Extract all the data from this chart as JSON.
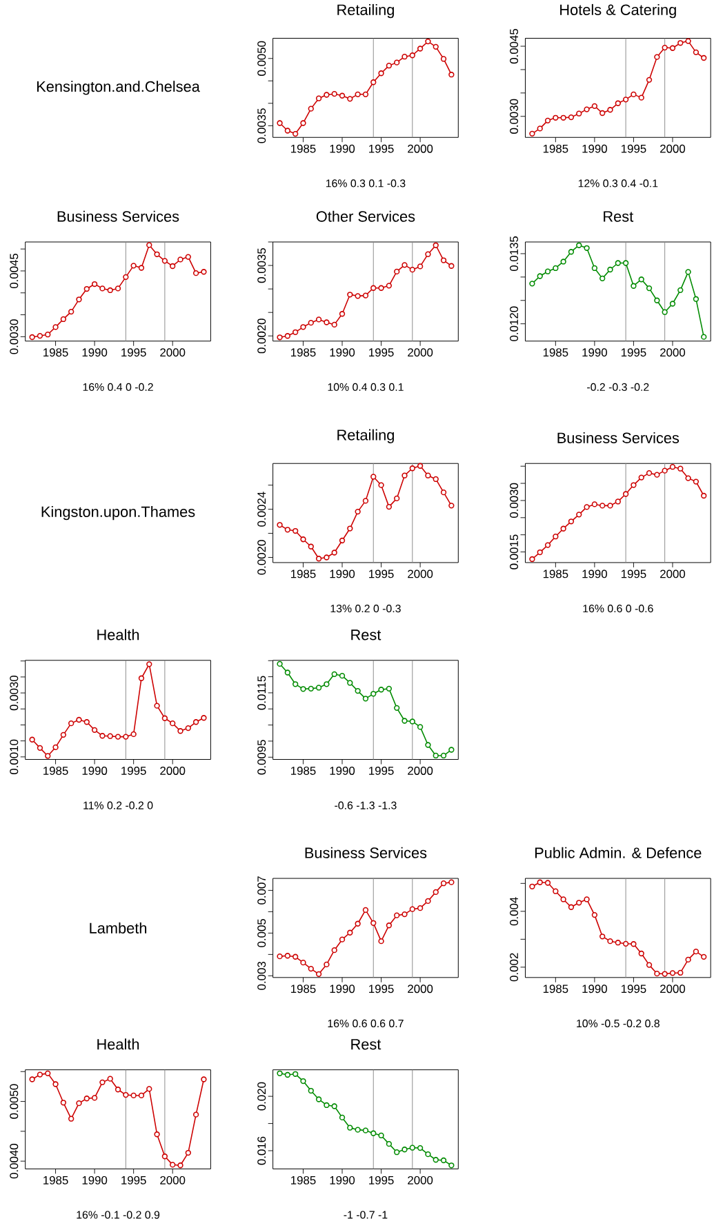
{
  "chart_data": [
    {
      "type": "other",
      "title": "Kensington.and.Chelsea"
    },
    {
      "type": "line",
      "title": "Retailing",
      "xlabel": "16% 0.3 0.1 -0.3",
      "color": "#cd0000",
      "marker": "circle",
      "line_style": "solid",
      "xlim": [
        1981.12,
        2004.88
      ],
      "xticks": [
        1985,
        1990,
        1995,
        2000
      ],
      "ylim": [
        0.00324,
        0.00545
      ],
      "yticks": [
        0.0035,
        {
          "value": 0.004,
          "label": null
        },
        {
          "value": 0.0045,
          "label": null
        },
        {
          "value": 0.005,
          "label": "0.0050"
        }
      ],
      "ref_lines": [
        {
          "axis": "x",
          "value": 1994,
          "color": "#8c8c8c"
        },
        {
          "axis": "x",
          "value": 1999,
          "color": "#8c8c8c"
        }
      ],
      "x": [
        1982,
        1983,
        1984,
        1985,
        1986,
        1987,
        1988,
        1989,
        1990,
        1991,
        1992,
        1993,
        1994,
        1995,
        1996,
        1997,
        1998,
        1999,
        2000,
        2001,
        2002,
        2003,
        2004
      ],
      "values": [
        0.00356,
        0.00339,
        0.00332,
        0.00356,
        0.00388,
        0.00411,
        0.00419,
        0.00421,
        0.00417,
        0.0041,
        0.0042,
        0.0042,
        0.00447,
        0.00467,
        0.00484,
        0.00491,
        0.00504,
        0.00507,
        0.00522,
        0.00538,
        0.00526,
        0.00499,
        0.00464
      ]
    },
    {
      "type": "line",
      "title": "Hotels & Catering",
      "xlabel": "12% 0.3 0.4 -0.1",
      "color": "#cd0000",
      "marker": "circle",
      "line_style": "solid",
      "xlim": [
        1981.12,
        2004.88
      ],
      "xticks": [
        1985,
        1990,
        1995,
        2000
      ],
      "ylim": [
        0.00255,
        0.00467
      ],
      "yticks": [
        {
          "value": 0.003,
          "label": "0.0030"
        },
        {
          "value": 0.0035,
          "label": null
        },
        {
          "value": 0.004,
          "label": null
        },
        0.0045
      ],
      "ref_lines": [
        {
          "axis": "x",
          "value": 1994,
          "color": "#8c8c8c"
        },
        {
          "axis": "x",
          "value": 1999,
          "color": "#8c8c8c"
        }
      ],
      "x": [
        1982,
        1983,
        1984,
        1985,
        1986,
        1987,
        1988,
        1989,
        1990,
        1991,
        1992,
        1993,
        1994,
        1995,
        1996,
        1997,
        1998,
        1999,
        2000,
        2001,
        2002,
        2003,
        2004
      ],
      "values": [
        0.00263,
        0.00274,
        0.00291,
        0.00297,
        0.00297,
        0.00298,
        0.00306,
        0.00315,
        0.00322,
        0.00307,
        0.00314,
        0.00328,
        0.00336,
        0.00347,
        0.0034,
        0.00378,
        0.00427,
        0.00447,
        0.00446,
        0.00457,
        0.00461,
        0.00437,
        0.00425
      ]
    },
    {
      "type": "line",
      "title": "Business Services",
      "xlabel": "16% 0.4 0 -0.2",
      "color": "#cd0000",
      "marker": "circle",
      "line_style": "solid",
      "xlim": [
        1981.12,
        2004.88
      ],
      "xticks": [
        1985,
        1990,
        1995,
        2000
      ],
      "ylim": [
        0.0029,
        0.00516
      ],
      "yticks": [
        {
          "value": 0.003,
          "label": "0.0030"
        },
        {
          "value": 0.0035,
          "label": null
        },
        {
          "value": 0.004,
          "label": null
        },
        0.0045,
        {
          "value": 0.005,
          "label": null
        }
      ],
      "ref_lines": [
        {
          "axis": "x",
          "value": 1994,
          "color": "#8c8c8c"
        },
        {
          "axis": "x",
          "value": 1999,
          "color": "#8c8c8c"
        }
      ],
      "x": [
        1982,
        1983,
        1984,
        1985,
        1986,
        1987,
        1988,
        1989,
        1990,
        1991,
        1992,
        1993,
        1994,
        1995,
        1996,
        1997,
        1998,
        1999,
        2000,
        2001,
        2002,
        2003,
        2004
      ],
      "values": [
        0.00299,
        0.00302,
        0.00305,
        0.00322,
        0.0034,
        0.00357,
        0.00385,
        0.00409,
        0.0042,
        0.0041,
        0.00406,
        0.0041,
        0.00436,
        0.00462,
        0.00457,
        0.00509,
        0.00488,
        0.00473,
        0.00461,
        0.00476,
        0.00482,
        0.00445,
        0.00448
      ]
    },
    {
      "type": "line",
      "title": "Other Services",
      "xlabel": "10% 0.4 0.3 0.1",
      "color": "#cd0000",
      "marker": "circle",
      "line_style": "solid",
      "xlim": [
        1981.12,
        2004.88
      ],
      "xticks": [
        1985,
        1990,
        1995,
        2000
      ],
      "ylim": [
        0.00189,
        0.004
      ],
      "yticks": [
        {
          "value": 0.002,
          "label": "0.0020"
        },
        {
          "value": 0.0025,
          "label": null
        },
        {
          "value": 0.003,
          "label": null
        },
        0.0035,
        {
          "value": 0.004,
          "label": null
        }
      ],
      "ref_lines": [
        {
          "axis": "x",
          "value": 1994,
          "color": "#8c8c8c"
        },
        {
          "axis": "x",
          "value": 1999,
          "color": "#8c8c8c"
        }
      ],
      "x": [
        1982,
        1983,
        1984,
        1985,
        1986,
        1987,
        1988,
        1989,
        1990,
        1991,
        1992,
        1993,
        1994,
        1995,
        1996,
        1997,
        1998,
        1999,
        2000,
        2001,
        2002,
        2003,
        2004
      ],
      "values": [
        0.00197,
        0.002,
        0.00208,
        0.00219,
        0.00228,
        0.00235,
        0.00229,
        0.00224,
        0.00247,
        0.00288,
        0.00285,
        0.00286,
        0.00302,
        0.00302,
        0.00307,
        0.00337,
        0.00351,
        0.00341,
        0.00348,
        0.00374,
        0.00393,
        0.00361,
        0.00349
      ]
    },
    {
      "type": "line",
      "title": "Rest",
      "xlabel": "-0.2 -0.3 -0.2",
      "color": "#008b00",
      "marker": "circle",
      "line_style": "solid",
      "xlim": [
        1981.12,
        2004.88
      ],
      "xticks": [
        1985,
        1990,
        1995,
        2000
      ],
      "ylim": [
        0.01163,
        0.01375
      ],
      "yticks": [
        {
          "value": 0.012,
          "label": "0.0120"
        },
        {
          "value": 0.0125,
          "label": null
        },
        {
          "value": 0.013,
          "label": null
        },
        0.0135
      ],
      "ref_lines": [
        {
          "axis": "x",
          "value": 1994,
          "color": "#8c8c8c"
        },
        {
          "axis": "x",
          "value": 1999,
          "color": "#8c8c8c"
        }
      ],
      "x": [
        1982,
        1983,
        1984,
        1985,
        1986,
        1987,
        1988,
        1989,
        1990,
        1991,
        1992,
        1993,
        1994,
        1995,
        1996,
        1997,
        1998,
        1999,
        2000,
        2001,
        2002,
        2003,
        2004
      ],
      "values": [
        0.01286,
        0.01302,
        0.01312,
        0.01319,
        0.01333,
        0.01354,
        0.01368,
        0.01362,
        0.01319,
        0.01297,
        0.01316,
        0.0133,
        0.0133,
        0.01281,
        0.01295,
        0.01276,
        0.0125,
        0.01225,
        0.01243,
        0.01272,
        0.01311,
        0.01253,
        0.01172
      ]
    },
    {
      "type": "other",
      "title": "Kingston.upon.Thames"
    },
    {
      "type": "line",
      "title": "Retailing",
      "xlabel": "13% 0.2 0 -0.3",
      "color": "#cd0000",
      "marker": "circle",
      "line_style": "solid",
      "xlim": [
        1981.12,
        2004.88
      ],
      "xticks": [
        1985,
        1990,
        1995,
        2000
      ],
      "ylim": [
        0.001957,
        0.00278
      ],
      "yticks": [
        {
          "value": 0.002,
          "label": "0.0020"
        },
        {
          "value": 0.0022,
          "label": null
        },
        0.0024,
        {
          "value": 0.0026,
          "label": null
        }
      ],
      "ref_lines": [
        {
          "axis": "x",
          "value": 1994,
          "color": "#8c8c8c"
        },
        {
          "axis": "x",
          "value": 1999,
          "color": "#8c8c8c"
        }
      ],
      "x": [
        1982,
        1983,
        1984,
        1985,
        1986,
        1987,
        1988,
        1989,
        1990,
        1991,
        1992,
        1993,
        1994,
        1995,
        1996,
        1997,
        1998,
        1999,
        2000,
        2001,
        2002,
        2003,
        2004
      ],
      "values": [
        0.00227,
        0.00223,
        0.00222,
        0.00215,
        0.00209,
        0.00199,
        0.002,
        0.00204,
        0.00214,
        0.00224,
        0.00238,
        0.00247,
        0.00267,
        0.0026,
        0.00242,
        0.00249,
        0.00268,
        0.00274,
        0.00276,
        0.00268,
        0.00265,
        0.00254,
        0.00243
      ]
    },
    {
      "type": "line",
      "title": "Business Services",
      "xlabel": "16% 0.6 0 -0.6",
      "color": "#cd0000",
      "marker": "circle",
      "line_style": "solid",
      "xlim": [
        1981.12,
        2004.88
      ],
      "xticks": [
        1985,
        1990,
        1995,
        2000
      ],
      "ylim": [
        0.00119,
        0.00408
      ],
      "yticks": [
        0.0015,
        {
          "value": 0.002,
          "label": null
        },
        {
          "value": 0.0025,
          "label": null
        },
        {
          "value": 0.003,
          "label": "0.0030"
        },
        {
          "value": 0.0035,
          "label": null
        },
        {
          "value": 0.004,
          "label": null
        }
      ],
      "ref_lines": [
        {
          "axis": "x",
          "value": 1994,
          "color": "#8c8c8c"
        },
        {
          "axis": "x",
          "value": 1999,
          "color": "#8c8c8c"
        }
      ],
      "x": [
        1982,
        1983,
        1984,
        1985,
        1986,
        1987,
        1988,
        1989,
        1990,
        1991,
        1992,
        1993,
        1994,
        1995,
        1996,
        1997,
        1998,
        1999,
        2000,
        2001,
        2002,
        2003,
        2004
      ],
      "values": [
        0.00129,
        0.00149,
        0.0017,
        0.00195,
        0.00218,
        0.00239,
        0.00259,
        0.00281,
        0.00289,
        0.00285,
        0.00285,
        0.00297,
        0.00319,
        0.00345,
        0.00367,
        0.0038,
        0.00375,
        0.00387,
        0.00398,
        0.00393,
        0.00365,
        0.00355,
        0.00314
      ]
    },
    {
      "type": "line",
      "title": "Health",
      "xlabel": "11% 0.2 -0.2 0",
      "color": "#cd0000",
      "marker": "circle",
      "line_style": "solid",
      "xlim": [
        1981.12,
        2004.88
      ],
      "xticks": [
        1985,
        1990,
        1995,
        2000
      ],
      "ylim": [
        0.00092,
        0.00402
      ],
      "yticks": [
        {
          "value": 0.001,
          "label": "0.0010"
        },
        {
          "value": 0.0015,
          "label": null
        },
        {
          "value": 0.002,
          "label": null
        },
        {
          "value": 0.0025,
          "label": null
        },
        {
          "value": 0.003,
          "label": "0.0030"
        },
        {
          "value": 0.0035,
          "label": null
        },
        {
          "value": 0.004,
          "label": null
        }
      ],
      "ref_lines": [
        {
          "axis": "x",
          "value": 1994,
          "color": "#8c8c8c"
        },
        {
          "axis": "x",
          "value": 1999,
          "color": "#8c8c8c"
        }
      ],
      "x": [
        1982,
        1983,
        1984,
        1985,
        1986,
        1987,
        1988,
        1989,
        1990,
        1991,
        1992,
        1993,
        1994,
        1995,
        1996,
        1997,
        1998,
        1999,
        2000,
        2001,
        2002,
        2003,
        2004
      ],
      "values": [
        0.00154,
        0.00128,
        0.00103,
        0.0013,
        0.00169,
        0.00205,
        0.00216,
        0.00209,
        0.00184,
        0.00166,
        0.00165,
        0.00163,
        0.00163,
        0.00171,
        0.00346,
        0.0039,
        0.0026,
        0.00221,
        0.00205,
        0.00181,
        0.0019,
        0.00209,
        0.00222
      ]
    },
    {
      "type": "line",
      "title": "Rest",
      "xlabel": "-0.6 -1.3 -1.3",
      "color": "#008b00",
      "marker": "circle",
      "line_style": "solid",
      "xlim": [
        1981.12,
        2004.88
      ],
      "xticks": [
        1985,
        1990,
        1995,
        2000
      ],
      "ylim": [
        0.00943,
        0.01251
      ],
      "yticks": [
        0.0095,
        {
          "value": 0.01,
          "label": null
        },
        {
          "value": 0.0105,
          "label": null
        },
        {
          "value": 0.011,
          "label": null
        },
        0.0115,
        {
          "value": 0.012,
          "label": null
        },
        {
          "value": 0.0125,
          "label": null
        }
      ],
      "ref_lines": [
        {
          "axis": "x",
          "value": 1994,
          "color": "#8c8c8c"
        },
        {
          "axis": "x",
          "value": 1999,
          "color": "#8c8c8c"
        }
      ],
      "x": [
        1982,
        1983,
        1984,
        1985,
        1986,
        1987,
        1988,
        1989,
        1990,
        1991,
        1992,
        1993,
        1994,
        1995,
        1996,
        1997,
        1998,
        1999,
        2000,
        2001,
        2002,
        2003,
        2004
      ],
      "values": [
        0.0124,
        0.01213,
        0.01177,
        0.01162,
        0.01163,
        0.01166,
        0.01177,
        0.01208,
        0.01203,
        0.01181,
        0.01156,
        0.01132,
        0.01147,
        0.0116,
        0.01163,
        0.01103,
        0.01063,
        0.01061,
        0.01044,
        0.00988,
        0.00955,
        0.00955,
        0.00973
      ]
    },
    {
      "type": "other",
      "title": "Lambeth"
    },
    {
      "type": "line",
      "title": "Business Services",
      "xlabel": "16% 0.6 0.6 0.7",
      "color": "#cd0000",
      "marker": "circle",
      "line_style": "solid",
      "xlim": [
        1981.12,
        2004.88
      ],
      "xticks": [
        1985,
        1990,
        1995,
        2000
      ],
      "ylim": [
        0.00292,
        0.00756
      ],
      "yticks": [
        0.003,
        {
          "value": 0.004,
          "label": null
        },
        0.005,
        {
          "value": 0.006,
          "label": null
        },
        0.007
      ],
      "ref_lines": [
        {
          "axis": "x",
          "value": 1994,
          "color": "#8c8c8c"
        },
        {
          "axis": "x",
          "value": 1999,
          "color": "#8c8c8c"
        }
      ],
      "x": [
        1982,
        1983,
        1984,
        1985,
        1986,
        1987,
        1988,
        1989,
        1990,
        1991,
        1992,
        1993,
        1994,
        1995,
        1996,
        1997,
        1998,
        1999,
        2000,
        2001,
        2002,
        2003,
        2004
      ],
      "values": [
        0.00391,
        0.00394,
        0.00389,
        0.00362,
        0.00333,
        0.00308,
        0.00353,
        0.0042,
        0.0047,
        0.00502,
        0.00544,
        0.00608,
        0.00547,
        0.00462,
        0.00536,
        0.00583,
        0.00588,
        0.00612,
        0.00617,
        0.0065,
        0.00692,
        0.00733,
        0.00738
      ]
    },
    {
      "type": "line",
      "title": "Public Admin. & Defence",
      "xlabel": "10% -0.5 -0.2 0.8",
      "color": "#cd0000",
      "marker": "circle",
      "line_style": "solid",
      "xlim": [
        1981.12,
        2004.88
      ],
      "xticks": [
        1985,
        1990,
        1995,
        2000
      ],
      "ylim": [
        0.00163,
        0.00518
      ],
      "yticks": [
        0.002,
        {
          "value": 0.003,
          "label": null
        },
        0.004,
        {
          "value": 0.005,
          "label": null
        }
      ],
      "ref_lines": [
        {
          "axis": "x",
          "value": 1994,
          "color": "#8c8c8c"
        },
        {
          "axis": "x",
          "value": 1999,
          "color": "#8c8c8c"
        }
      ],
      "x": [
        1982,
        1983,
        1984,
        1985,
        1986,
        1987,
        1988,
        1989,
        1990,
        1991,
        1992,
        1993,
        1994,
        1995,
        1996,
        1997,
        1998,
        1999,
        2000,
        2001,
        2002,
        2003,
        2004
      ],
      "values": [
        0.00489,
        0.00504,
        0.00502,
        0.00472,
        0.00443,
        0.00415,
        0.00431,
        0.00443,
        0.00387,
        0.0031,
        0.00293,
        0.00288,
        0.00284,
        0.00283,
        0.00249,
        0.00208,
        0.00177,
        0.00176,
        0.00179,
        0.0018,
        0.00227,
        0.00256,
        0.00237
      ]
    },
    {
      "type": "line",
      "title": "Health",
      "xlabel": "16% -0.1 -0.2 0.9",
      "color": "#cd0000",
      "marker": "circle",
      "line_style": "solid",
      "xlim": [
        1981.12,
        2004.88
      ],
      "xticks": [
        1985,
        1990,
        1995,
        2000
      ],
      "ylim": [
        0.00387,
        0.00553
      ],
      "yticks": [
        {
          "value": 0.004,
          "label": "0.0040"
        },
        {
          "value": 0.0045,
          "label": null
        },
        {
          "value": 0.005,
          "label": "0.0050"
        },
        {
          "value": 0.0055,
          "label": null
        }
      ],
      "ref_lines": [
        {
          "axis": "x",
          "value": 1994,
          "color": "#8c8c8c"
        },
        {
          "axis": "x",
          "value": 1999,
          "color": "#8c8c8c"
        }
      ],
      "x": [
        1982,
        1983,
        1984,
        1985,
        1986,
        1987,
        1988,
        1989,
        1990,
        1991,
        1992,
        1993,
        1994,
        1995,
        1996,
        1997,
        1998,
        1999,
        2000,
        2001,
        2002,
        2003,
        2004
      ],
      "values": [
        0.00537,
        0.00545,
        0.00547,
        0.00529,
        0.00498,
        0.00471,
        0.00497,
        0.00505,
        0.00506,
        0.00532,
        0.00538,
        0.0052,
        0.00511,
        0.0051,
        0.0051,
        0.00521,
        0.00445,
        0.00408,
        0.00394,
        0.00393,
        0.00414,
        0.00478,
        0.00537
      ]
    },
    {
      "type": "line",
      "title": "Rest",
      "xlabel": "-1 -0.7 -1",
      "color": "#008b00",
      "marker": "circle",
      "line_style": "solid",
      "xlim": [
        1981.12,
        2004.88
      ],
      "xticks": [
        1985,
        1990,
        1995,
        2000
      ],
      "ylim": [
        0.01466,
        0.02195
      ],
      "yticks": [
        0.016,
        {
          "value": 0.018,
          "label": null
        },
        {
          "value": 0.02,
          "label": "0.020"
        }
      ],
      "ref_lines": [
        {
          "axis": "x",
          "value": 1994,
          "color": "#8c8c8c"
        },
        {
          "axis": "x",
          "value": 1999,
          "color": "#8c8c8c"
        }
      ],
      "x": [
        1982,
        1983,
        1984,
        1985,
        1986,
        1987,
        1988,
        1989,
        1990,
        1991,
        1992,
        1993,
        1994,
        1995,
        1996,
        1997,
        1998,
        1999,
        2000,
        2001,
        2002,
        2003,
        2004
      ],
      "values": [
        0.02169,
        0.02158,
        0.02164,
        0.02112,
        0.02041,
        0.01978,
        0.01935,
        0.01927,
        0.01844,
        0.01769,
        0.01754,
        0.01749,
        0.01728,
        0.01712,
        0.0165,
        0.01589,
        0.01609,
        0.01622,
        0.0162,
        0.01574,
        0.01533,
        0.01529,
        0.01492
      ]
    }
  ]
}
